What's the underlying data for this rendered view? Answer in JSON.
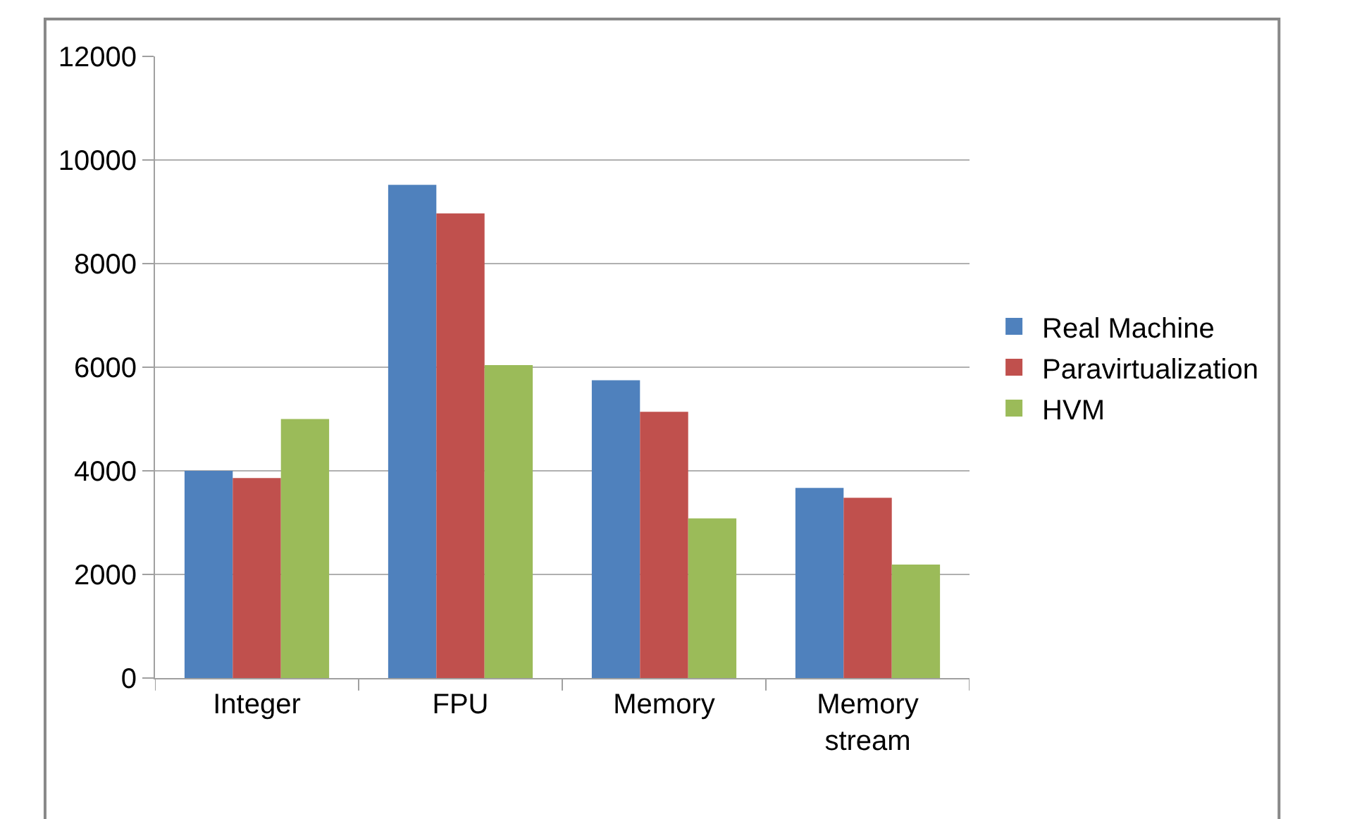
{
  "chart_data": {
    "type": "bar",
    "categories": [
      "Integer",
      "FPU",
      "Memory",
      "Memory\nstream"
    ],
    "series": [
      {
        "name": "Real Machine",
        "color": "#4f81bd",
        "values": [
          4000,
          9520,
          5750,
          3670
        ]
      },
      {
        "name": "Paravirtualization",
        "color": "#c0504d",
        "values": [
          3860,
          8970,
          5140,
          3480
        ]
      },
      {
        "name": "HVM",
        "color": "#9bbb59",
        "values": [
          5000,
          6040,
          3080,
          2190
        ]
      }
    ],
    "ylim": [
      0,
      12000
    ],
    "yticks": [
      0,
      2000,
      4000,
      6000,
      8000,
      10000,
      12000
    ],
    "grid": "y",
    "legend": "right"
  }
}
